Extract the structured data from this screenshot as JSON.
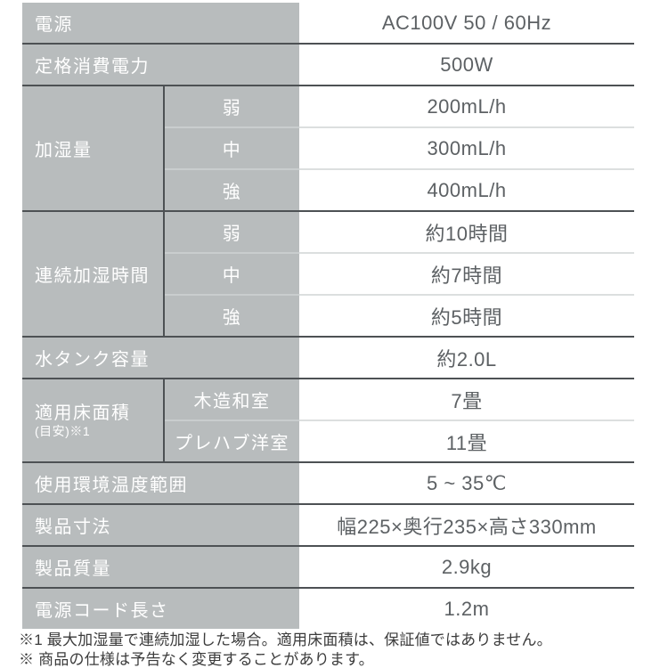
{
  "colors": {
    "label_bg": "#b8bcbd",
    "label_text": "#ffffff",
    "value_text": "#5d6164",
    "dark_line": "#4d5154",
    "light_line": "#dcdfdf",
    "light_line_on_gray": "#c9cdce",
    "footnote_text": "#3b3b3b"
  },
  "spec": {
    "rows": [
      {
        "label": "電源",
        "value": "AC100V 50 / 60Hz"
      },
      {
        "label": "定格消費電力",
        "value": "500W"
      },
      {
        "label": "加湿量",
        "subs": [
          {
            "label": "弱",
            "value": "200mL/h"
          },
          {
            "label": "中",
            "value": "300mL/h"
          },
          {
            "label": "強",
            "value": "400mL/h"
          }
        ]
      },
      {
        "label": "連続加湿時間",
        "subs": [
          {
            "label": "弱",
            "value": "約10時間"
          },
          {
            "label": "中",
            "value": "約7時間"
          },
          {
            "label": "強",
            "value": "約5時間"
          }
        ]
      },
      {
        "label": "水タンク容量",
        "value": "約2.0L"
      },
      {
        "label": "適用床面積",
        "label_note": "(目安)※1",
        "subs": [
          {
            "label": "木造和室",
            "value": "7畳"
          },
          {
            "label": "プレハブ洋室",
            "value": "11畳"
          }
        ]
      },
      {
        "label": "使用環境温度範囲",
        "value": "5 ~ 35℃"
      },
      {
        "label": "製品寸法",
        "value": "幅225×奥行235×高さ330mm"
      },
      {
        "label": "製品質量",
        "value": "2.9kg"
      },
      {
        "label": "電源コード長さ",
        "value": "1.2m"
      }
    ]
  },
  "footnotes": [
    "※1 最大加湿量で連続加湿した場合。適用床面積は、保証値ではありません。",
    "※ 商品の仕様は予告なく変更することがあります。"
  ]
}
